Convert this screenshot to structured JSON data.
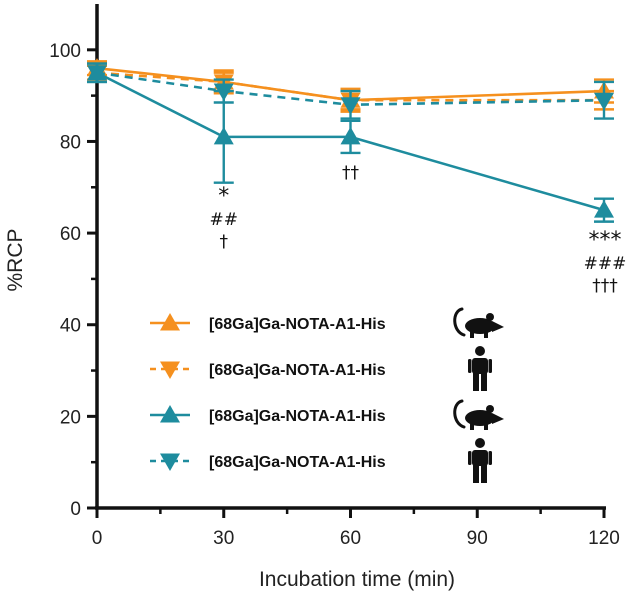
{
  "chart_data": {
    "type": "line",
    "xlabel": "Incubation time (min)",
    "ylabel": "%RCP",
    "xlim": [
      0,
      120
    ],
    "ylim": [
      0,
      110
    ],
    "x_ticks": [
      0,
      30,
      60,
      90,
      120
    ],
    "y_ticks": [
      0,
      20,
      40,
      60,
      80,
      100
    ],
    "x": [
      0,
      30,
      60,
      120
    ],
    "grid": false,
    "legend_position": "bottom-left",
    "series": [
      {
        "name": "[68Ga]Ga-NOTA-A1-His",
        "legend_icon": "mouse-icon",
        "color": "#F5901E",
        "line_style": "solid",
        "marker": "triangle-up",
        "values": [
          96,
          93,
          89,
          91
        ],
        "errors": [
          1.5,
          2.0,
          2.0,
          2.5
        ]
      },
      {
        "name": "[68Ga]Ga-NOTA-A1-His",
        "legend_icon": "human-icon",
        "color": "#F5901E",
        "line_style": "dashed",
        "marker": "triangle-down",
        "values": [
          95,
          93,
          89,
          89
        ],
        "errors": [
          1.5,
          2.5,
          2.5,
          2.0
        ]
      },
      {
        "name": "[68Ga]Ga-NOTA-A1-His",
        "legend_icon": "mouse-icon",
        "color": "#1E8C9E",
        "line_style": "solid",
        "marker": "triangle-up",
        "values": [
          95,
          81,
          81,
          65
        ],
        "errors": [
          2.0,
          10.0,
          3.5,
          2.5
        ]
      },
      {
        "name": "[68Ga]Ga-NOTA-A1-His",
        "legend_icon": "human-icon",
        "color": "#1E8C9E",
        "line_style": "dashed",
        "marker": "triangle-down",
        "values": [
          95,
          91,
          88,
          89
        ],
        "errors": [
          2.0,
          2.5,
          3.0,
          4.0
        ]
      }
    ],
    "annotations": [
      {
        "x": 30,
        "lines": [
          "*",
          "##",
          "†"
        ]
      },
      {
        "x": 60,
        "lines": [
          "††"
        ]
      },
      {
        "x": 120,
        "lines": [
          "***",
          "###",
          "†††"
        ]
      }
    ]
  }
}
